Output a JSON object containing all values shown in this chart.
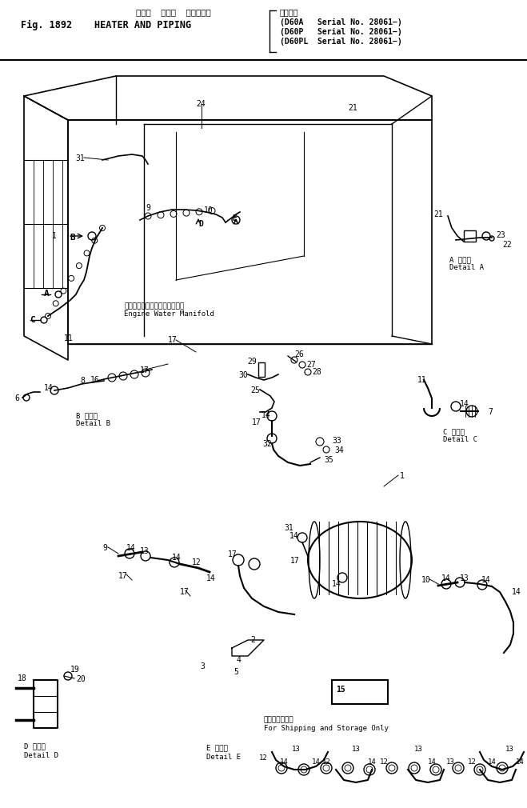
{
  "fig_number": "Fig. 1892",
  "title_jp": "ヒータ  および  パイピング",
  "title_en": "HEATER AND PIPING",
  "applicable_jp": "適用号機",
  "serial_lines": [
    "D60A   Serial No. 28061−",
    "D60P   Serial No. 28061−",
    "D60PL  Serial No. 28061−"
  ],
  "engine_water_manifold_jp": "エンジンウォータマニホールド",
  "engine_water_manifold_en": "Engine Water Manifold",
  "for_shipping_jp": "輸送及び保管用",
  "for_shipping_en": "For Shipping and Storage Only",
  "detail_a_jp": "A 詳細図",
  "detail_a_en": "Detail A",
  "detail_b_jp": "B 詳細図",
  "detail_b_en": "Detail B",
  "detail_c_jp": "C 詳細図",
  "detail_c_en": "Detail C",
  "detail_d_jp": "D 詳細図",
  "detail_d_en": "Detail D",
  "detail_e_jp": "E 詳細図",
  "detail_e_en": "Detail E",
  "bg_color": "#ffffff",
  "lc": "#000000"
}
